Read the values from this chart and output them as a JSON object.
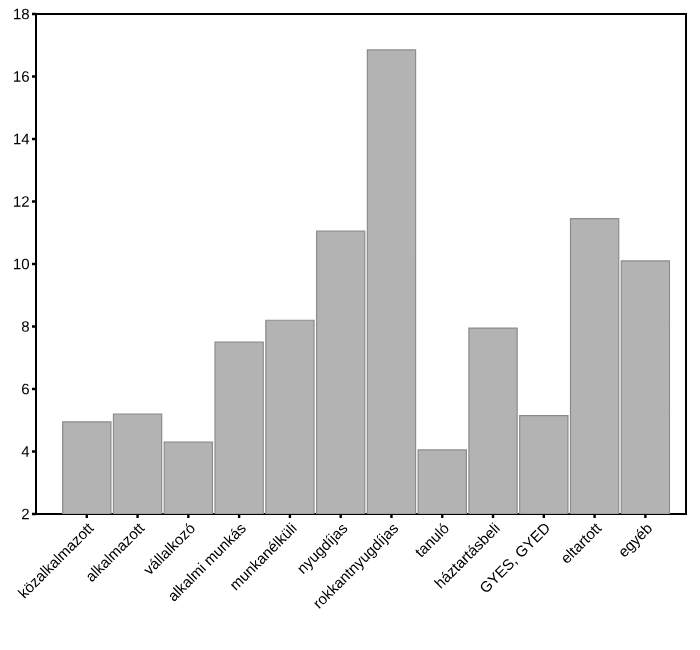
{
  "chart_data": {
    "type": "bar",
    "categories": [
      "közalkalmazott",
      "alkalmazott",
      "vállalkozó",
      "alkalmi munkás",
      "munkanélküli",
      "nyugdíjas",
      "rokkantnyugdíjas",
      "tanuló",
      "háztartásbeli",
      "GYES, GYED",
      "eltartott",
      "egyéb"
    ],
    "values": [
      4.95,
      5.2,
      4.3,
      7.5,
      8.2,
      11.05,
      16.85,
      4.05,
      7.95,
      5.15,
      11.45,
      10.1
    ],
    "color": "#b3b3b3",
    "ylim": [
      2,
      18
    ],
    "yticks": [
      2,
      4,
      6,
      8,
      10,
      12,
      14,
      16,
      18
    ],
    "grid": false
  }
}
